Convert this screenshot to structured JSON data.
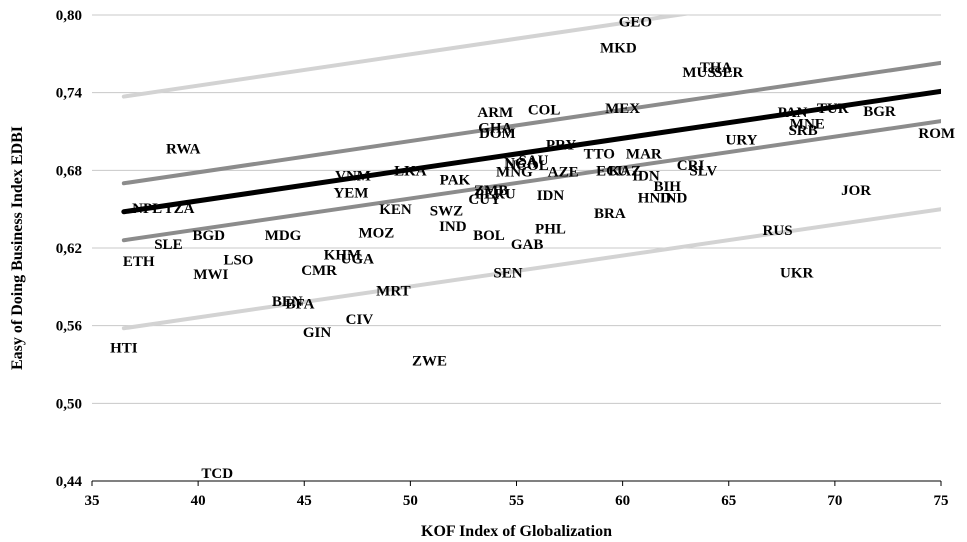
{
  "chart_data": {
    "type": "scatter",
    "title": "",
    "xlabel": "KOF Index of Globalization",
    "ylabel": "Easy of Doing Business Index EDBI",
    "xlim": [
      35,
      75
    ],
    "ylim": [
      0.44,
      0.8
    ],
    "x_ticks": [
      "35",
      "40",
      "45",
      "50",
      "55",
      "60",
      "65",
      "70",
      "75"
    ],
    "y_ticks": [
      "0,44",
      "0,50",
      "0,56",
      "0,62",
      "0,68",
      "0,74",
      "0,80"
    ],
    "y_tick_values": [
      0.44,
      0.5,
      0.56,
      0.62,
      0.68,
      0.74,
      0.8
    ],
    "x_tick_values": [
      35,
      40,
      45,
      50,
      55,
      60,
      65,
      70,
      75
    ],
    "grid": "horizontal",
    "points": [
      {
        "label": "GEO",
        "x": 60.6,
        "y": 0.795
      },
      {
        "label": "MKD",
        "x": 59.8,
        "y": 0.775
      },
      {
        "label": "THA",
        "x": 64.4,
        "y": 0.76
      },
      {
        "label": "MUS",
        "x": 63.6,
        "y": 0.756
      },
      {
        "label": "SER",
        "x": 65.0,
        "y": 0.756
      },
      {
        "label": "ARM",
        "x": 54.0,
        "y": 0.725
      },
      {
        "label": "COL",
        "x": 56.3,
        "y": 0.727
      },
      {
        "label": "MEX",
        "x": 60.0,
        "y": 0.728
      },
      {
        "label": "PAN",
        "x": 68.0,
        "y": 0.725
      },
      {
        "label": "TUR",
        "x": 69.9,
        "y": 0.728
      },
      {
        "label": "BGR",
        "x": 72.1,
        "y": 0.726
      },
      {
        "label": "GHA",
        "x": 54.0,
        "y": 0.713
      },
      {
        "label": "DOM",
        "x": 54.1,
        "y": 0.709
      },
      {
        "label": "MNE",
        "x": 68.7,
        "y": 0.716
      },
      {
        "label": "SRB",
        "x": 68.5,
        "y": 0.711
      },
      {
        "label": "URY",
        "x": 65.6,
        "y": 0.704
      },
      {
        "label": "ROM",
        "x": 74.8,
        "y": 0.709
      },
      {
        "label": "RWA",
        "x": 39.3,
        "y": 0.697
      },
      {
        "label": "PRY",
        "x": 57.1,
        "y": 0.7
      },
      {
        "label": "TTO",
        "x": 58.9,
        "y": 0.693
      },
      {
        "label": "MAR",
        "x": 61.0,
        "y": 0.693
      },
      {
        "label": "SAU",
        "x": 55.8,
        "y": 0.688
      },
      {
        "label": "NGA",
        "x": 55.2,
        "y": 0.686
      },
      {
        "label": "NCOL",
        "x": 55.5,
        "y": 0.684
      },
      {
        "label": "CRI",
        "x": 63.2,
        "y": 0.684
      },
      {
        "label": "SLV",
        "x": 63.8,
        "y": 0.68
      },
      {
        "label": "LKA",
        "x": 50.0,
        "y": 0.68
      },
      {
        "label": "MNG",
        "x": 54.9,
        "y": 0.679
      },
      {
        "label": "AZE",
        "x": 57.2,
        "y": 0.679
      },
      {
        "label": "ECU",
        "x": 59.5,
        "y": 0.68
      },
      {
        "label": "KAZ",
        "x": 60.1,
        "y": 0.68
      },
      {
        "label": "IDN",
        "x": 61.1,
        "y": 0.676
      },
      {
        "label": "BIH",
        "x": 62.1,
        "y": 0.668
      },
      {
        "label": "VNM",
        "x": 47.3,
        "y": 0.676
      },
      {
        "label": "PAK",
        "x": 52.1,
        "y": 0.673
      },
      {
        "label": "ZMB",
        "x": 53.8,
        "y": 0.665
      },
      {
        "label": "PERU",
        "x": 54.0,
        "y": 0.662
      },
      {
        "label": "CUY",
        "x": 53.5,
        "y": 0.658
      },
      {
        "label": "IDN",
        "x": 56.6,
        "y": 0.661
      },
      {
        "label": "HND",
        "x": 61.5,
        "y": 0.659
      },
      {
        "label": "IND",
        "x": 62.4,
        "y": 0.659
      },
      {
        "label": "JOR",
        "x": 71.0,
        "y": 0.665
      },
      {
        "label": "YEM",
        "x": 47.2,
        "y": 0.663
      },
      {
        "label": "KEN",
        "x": 49.3,
        "y": 0.65
      },
      {
        "label": "SWZ",
        "x": 51.7,
        "y": 0.649
      },
      {
        "label": "BRA",
        "x": 59.4,
        "y": 0.647
      },
      {
        "label": "NPL",
        "x": 37.6,
        "y": 0.651
      },
      {
        "label": "TZA",
        "x": 39.1,
        "y": 0.651
      },
      {
        "label": "IND",
        "x": 52.0,
        "y": 0.637
      },
      {
        "label": "PHL",
        "x": 56.6,
        "y": 0.635
      },
      {
        "label": "MOZ",
        "x": 48.4,
        "y": 0.632
      },
      {
        "label": "BOL",
        "x": 53.7,
        "y": 0.63
      },
      {
        "label": "RUS",
        "x": 67.3,
        "y": 0.634
      },
      {
        "label": "BGD",
        "x": 40.5,
        "y": 0.63
      },
      {
        "label": "MDG",
        "x": 44.0,
        "y": 0.63
      },
      {
        "label": "GAB",
        "x": 55.5,
        "y": 0.623
      },
      {
        "label": "SLE",
        "x": 38.6,
        "y": 0.623
      },
      {
        "label": "KHM",
        "x": 46.8,
        "y": 0.615
      },
      {
        "label": "UGA",
        "x": 47.5,
        "y": 0.612
      },
      {
        "label": "LSO",
        "x": 41.9,
        "y": 0.611
      },
      {
        "label": "ETH",
        "x": 37.2,
        "y": 0.61
      },
      {
        "label": "CMR",
        "x": 45.7,
        "y": 0.603
      },
      {
        "label": "MWI",
        "x": 40.6,
        "y": 0.6
      },
      {
        "label": "SEN",
        "x": 54.6,
        "y": 0.601
      },
      {
        "label": "UKR",
        "x": 68.2,
        "y": 0.601
      },
      {
        "label": "MRT",
        "x": 49.2,
        "y": 0.587
      },
      {
        "label": "BEN",
        "x": 44.2,
        "y": 0.579
      },
      {
        "label": "BFA",
        "x": 44.8,
        "y": 0.577
      },
      {
        "label": "CIV",
        "x": 47.6,
        "y": 0.565
      },
      {
        "label": "GIN",
        "x": 45.6,
        "y": 0.555
      },
      {
        "label": "HTI",
        "x": 36.5,
        "y": 0.543
      },
      {
        "label": "ZWE",
        "x": 50.9,
        "y": 0.533
      },
      {
        "label": "TCD",
        "x": 40.9,
        "y": 0.446
      }
    ],
    "fit_lines": [
      {
        "role": "regression",
        "color": "#000000",
        "x": [
          36.5,
          75
        ],
        "y": [
          0.648,
          0.741
        ]
      },
      {
        "role": "confidence-upper",
        "color": "#8c8c8c",
        "x": [
          36.5,
          75
        ],
        "y": [
          0.67,
          0.763
        ]
      },
      {
        "role": "confidence-lower",
        "color": "#8c8c8c",
        "x": [
          36.5,
          75
        ],
        "y": [
          0.626,
          0.718
        ]
      },
      {
        "role": "prediction-upper",
        "color": "#d3d3d3",
        "x": [
          36.5,
          75
        ],
        "y": [
          0.737,
          0.83
        ]
      },
      {
        "role": "prediction-lower",
        "color": "#d3d3d3",
        "x": [
          36.5,
          75
        ],
        "y": [
          0.558,
          0.65
        ]
      }
    ]
  }
}
